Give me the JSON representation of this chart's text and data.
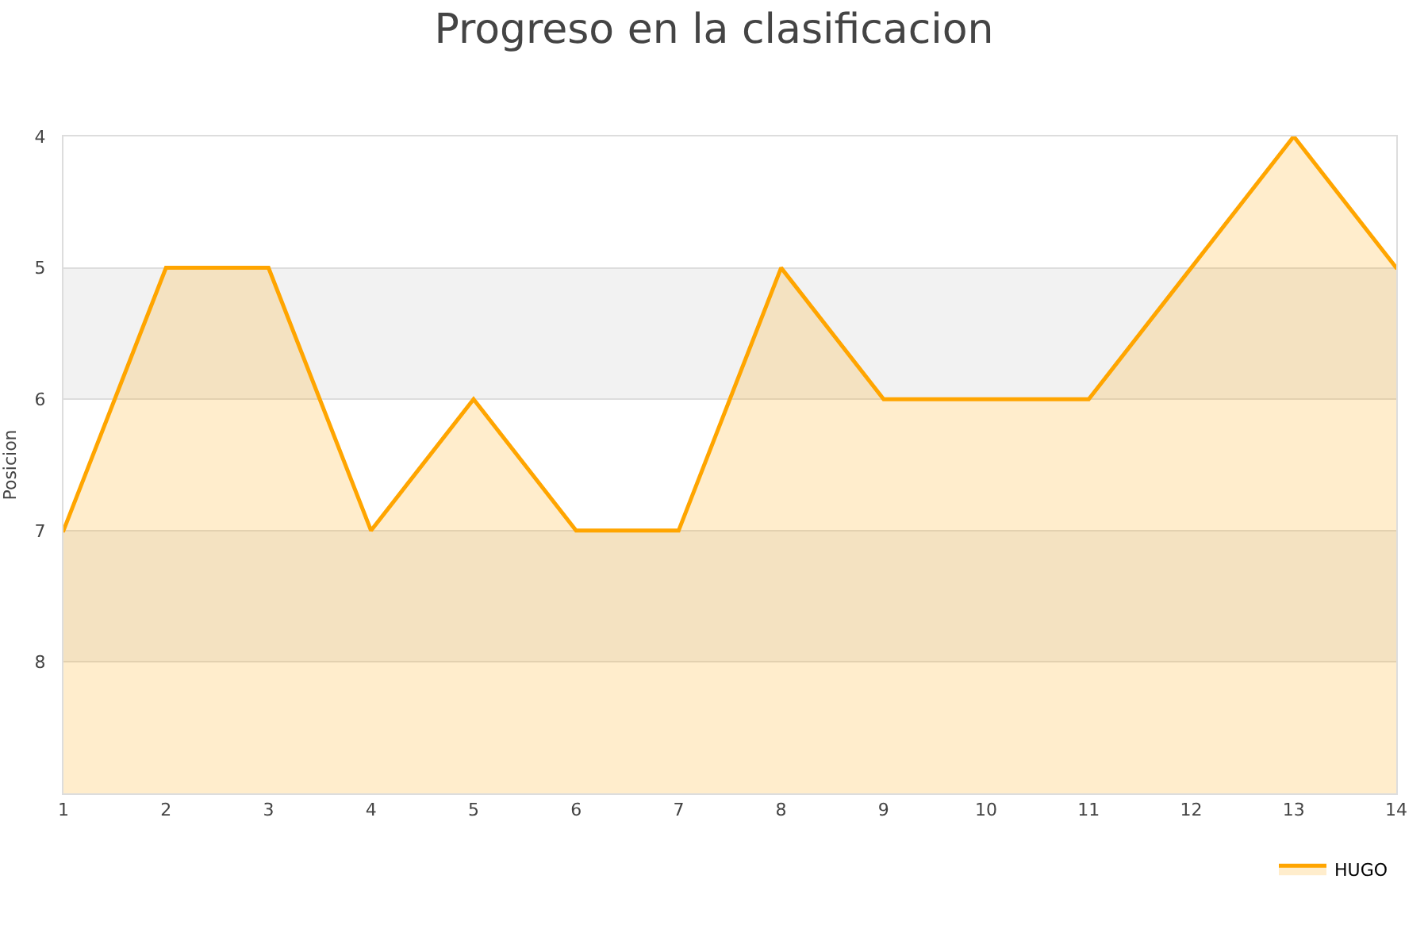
{
  "chart_data": {
    "type": "area",
    "title": "Progreso en la clasificacion",
    "ylabel": "Posicion",
    "x": [
      1,
      2,
      3,
      4,
      5,
      6,
      7,
      8,
      9,
      10,
      11,
      12,
      13,
      14
    ],
    "series": [
      {
        "name": "HUGO",
        "color": "#ffa500",
        "values": [
          7,
          5,
          5,
          7,
          6,
          7,
          7,
          5,
          6,
          6,
          6,
          5,
          4,
          5
        ]
      }
    ],
    "xlim": [
      1,
      14
    ],
    "xticks": [
      1,
      2,
      3,
      4,
      5,
      6,
      7,
      8,
      9,
      10,
      11,
      12,
      13,
      14
    ],
    "ylim": [
      9,
      4
    ],
    "yticks": [
      4,
      5,
      6,
      7,
      8
    ],
    "bands": [
      {
        "axis": "y",
        "from": 5,
        "to": 6,
        "color": "#f2f2f2"
      },
      {
        "axis": "y",
        "from": 7,
        "to": 8,
        "color": "#f2f2f2"
      }
    ],
    "grid": "y",
    "legend": "bottom right"
  }
}
